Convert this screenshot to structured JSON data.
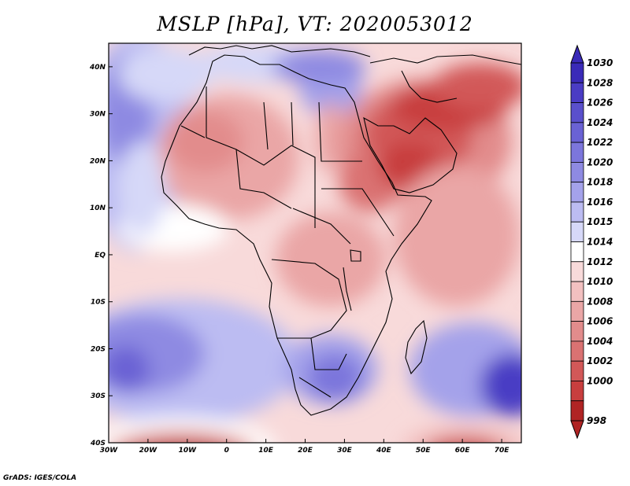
{
  "title": "MSLP [hPa], VT: 2020053012",
  "credit": "GrADS: IGES/COLA",
  "map": {
    "region": "Africa",
    "lon_range": [
      -30,
      75
    ],
    "lat_range": [
      -40,
      45
    ],
    "lat_ticks": [
      {
        "value": 40,
        "label": "40N"
      },
      {
        "value": 30,
        "label": "30N"
      },
      {
        "value": 20,
        "label": "20N"
      },
      {
        "value": 10,
        "label": "10N"
      },
      {
        "value": 0,
        "label": "EQ"
      },
      {
        "value": -10,
        "label": "10S"
      },
      {
        "value": -20,
        "label": "20S"
      },
      {
        "value": -30,
        "label": "30S"
      },
      {
        "value": -40,
        "label": "40S"
      }
    ],
    "lon_ticks": [
      {
        "value": -30,
        "label": "30W"
      },
      {
        "value": -20,
        "label": "20W"
      },
      {
        "value": -10,
        "label": "10W"
      },
      {
        "value": 0,
        "label": "0"
      },
      {
        "value": 10,
        "label": "10E"
      },
      {
        "value": 20,
        "label": "20E"
      },
      {
        "value": 30,
        "label": "30E"
      },
      {
        "value": 40,
        "label": "40E"
      },
      {
        "value": 50,
        "label": "50E"
      },
      {
        "value": 60,
        "label": "60E"
      },
      {
        "value": 70,
        "label": "70E"
      }
    ]
  },
  "colorbar": {
    "levels": [
      {
        "label": "1030",
        "color": "#3a2ab8"
      },
      {
        "label": "1028",
        "color": "#4a3cc4"
      },
      {
        "label": "1026",
        "color": "#5a50cc"
      },
      {
        "label": "1024",
        "color": "#6a62d4"
      },
      {
        "label": "1022",
        "color": "#7c76dc"
      },
      {
        "label": "1020",
        "color": "#8e8ae2"
      },
      {
        "label": "1018",
        "color": "#a4a2ea"
      },
      {
        "label": "1016",
        "color": "#bcbcf2"
      },
      {
        "label": "1015",
        "color": "#d6d8f8"
      },
      {
        "label": "1014",
        "color": "#ffffff"
      },
      {
        "label": "1012",
        "color": "#f8dada"
      },
      {
        "label": "1010",
        "color": "#f2c0c0"
      },
      {
        "label": "1008",
        "color": "#eaa6a6"
      },
      {
        "label": "1006",
        "color": "#e28c8c"
      },
      {
        "label": "1004",
        "color": "#da7272"
      },
      {
        "label": "1002",
        "color": "#d25858"
      },
      {
        "label": "1000",
        "color": "#c83e3e"
      },
      {
        "label": "998",
        "color": "#b02424"
      }
    ]
  }
}
